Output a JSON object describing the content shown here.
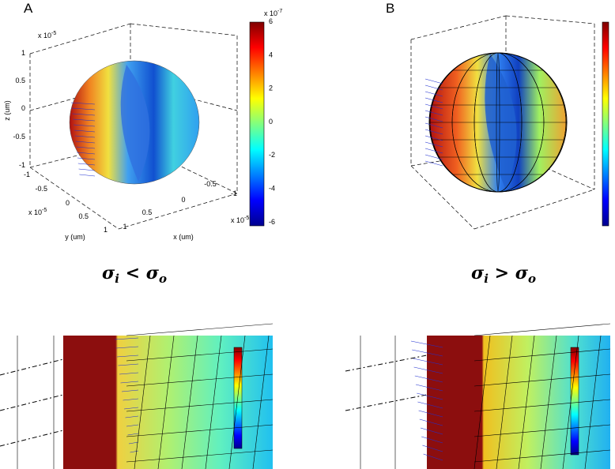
{
  "panels": [
    {
      "letter": "A",
      "condition": [
        "σ",
        "i",
        " < ",
        "σ",
        "o"
      ],
      "z_axis": {
        "label": "z (um)",
        "scale": {
          "base": "x 10",
          "exp": "-5"
        },
        "ticks": [
          "1",
          "0.5",
          "0",
          "-0.5",
          "-1"
        ]
      },
      "y_axis": {
        "label": "y (um)",
        "scale": {
          "base": "x 10",
          "exp": "-5"
        },
        "ticks": [
          "-1",
          "-0.5",
          "0",
          "0.5",
          "1"
        ]
      },
      "x_axis": {
        "label": "x (um)",
        "scale": {
          "base": "x 10",
          "exp": "-5"
        },
        "ticks": [
          "1",
          "0.5",
          "0",
          "-0.5",
          "-1"
        ]
      },
      "colorbar": {
        "scale": {
          "base": "x 10",
          "exp": "-7"
        },
        "ticks": [
          "6",
          "4",
          "2",
          "0",
          "-2",
          "-4",
          "-6"
        ]
      }
    },
    {
      "letter": "B",
      "condition": [
        "σ",
        "i",
        " > ",
        "σ",
        "o"
      ]
    }
  ]
}
